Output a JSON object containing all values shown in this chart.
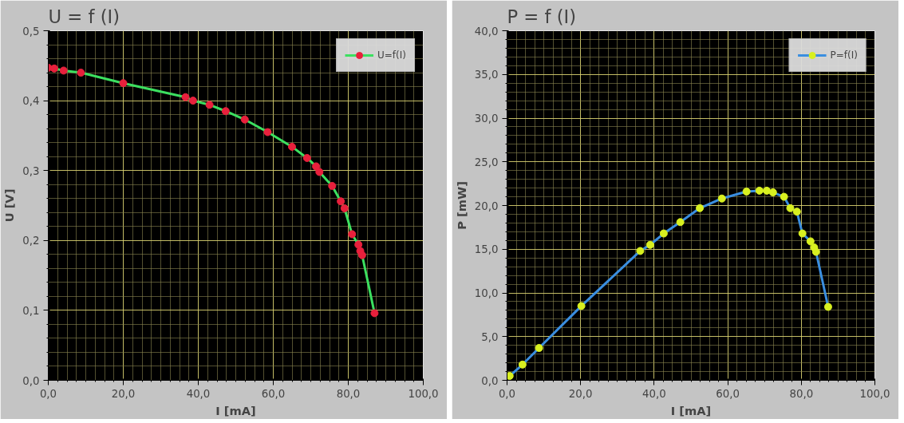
{
  "chart_data": [
    {
      "type": "line",
      "title": "U = f (I)",
      "xlabel": "I [mA]",
      "ylabel": "U [V]",
      "series": [
        {
          "name": "U=f(I)",
          "color": "#3ce060",
          "colors": [
            "#e8203c",
            "#e8203c",
            "#e8203c",
            "#e8203c",
            "#e8203c",
            "#e8203c",
            "#e8203c",
            "#e8203c",
            "#e8203c",
            "#e8203c",
            "#e8203c",
            "#e8203c",
            "#e8203c",
            "#e8203c",
            "#e8203c",
            "#e8203c",
            "#e8203c",
            "#e8203c",
            "#e8203c",
            "#e8203c",
            "#e8203c",
            "#e8203c",
            "#e8203c"
          ],
          "x": [
            0,
            1.6,
            4.1,
            8.7,
            20,
            36.6,
            38.6,
            43,
            47.3,
            52.4,
            58.5,
            65,
            69,
            71.4,
            72.3,
            75.7,
            78,
            79,
            81,
            82.7,
            83.2,
            83.7,
            87
          ],
          "values": [
            0.447,
            0.446,
            0.443,
            0.44,
            0.425,
            0.405,
            0.4,
            0.394,
            0.385,
            0.373,
            0.355,
            0.334,
            0.318,
            0.306,
            0.298,
            0.278,
            0.256,
            0.246,
            0.209,
            0.194,
            0.185,
            0.179,
            0.096
          ]
        }
      ],
      "xlim": [
        0,
        100
      ],
      "ylim": [
        0,
        0.5
      ],
      "xticks": [
        {
          "value": 0,
          "label": "0,0"
        },
        {
          "value": 2.5,
          "label": null
        },
        {
          "value": 5,
          "label": null
        },
        {
          "value": 7.5,
          "label": null
        },
        {
          "value": 10,
          "label": null
        },
        {
          "value": 12.5,
          "label": null
        },
        {
          "value": 15,
          "label": null
        },
        {
          "value": 17.5,
          "label": null
        },
        {
          "value": 20,
          "label": "20,0"
        },
        {
          "value": 22.5,
          "label": null
        },
        {
          "value": 25,
          "label": null
        },
        {
          "value": 27.5,
          "label": null
        },
        {
          "value": 30,
          "label": null
        },
        {
          "value": 32.5,
          "label": null
        },
        {
          "value": 35,
          "label": null
        },
        {
          "value": 37.5,
          "label": null
        },
        {
          "value": 40,
          "label": "40,0"
        },
        {
          "value": 42.5,
          "label": null
        },
        {
          "value": 45,
          "label": null
        },
        {
          "value": 47.5,
          "label": null
        },
        {
          "value": 50,
          "label": null
        },
        {
          "value": 52.5,
          "label": null
        },
        {
          "value": 55,
          "label": null
        },
        {
          "value": 57.5,
          "label": null
        },
        {
          "value": 60,
          "label": "60,0"
        },
        {
          "value": 62.5,
          "label": null
        },
        {
          "value": 65,
          "label": null
        },
        {
          "value": 67.5,
          "label": null
        },
        {
          "value": 70,
          "label": null
        },
        {
          "value": 72.5,
          "label": null
        },
        {
          "value": 75,
          "label": null
        },
        {
          "value": 77.5,
          "label": null
        },
        {
          "value": 80,
          "label": "80,0"
        },
        {
          "value": 82.5,
          "label": null
        },
        {
          "value": 85,
          "label": null
        },
        {
          "value": 87.5,
          "label": null
        },
        {
          "value": 90,
          "label": null
        },
        {
          "value": 92.5,
          "label": null
        },
        {
          "value": 95,
          "label": null
        },
        {
          "value": 97.5,
          "label": null
        },
        {
          "value": 100,
          "label": "100,0"
        }
      ],
      "yticks": [
        {
          "value": 0,
          "label": "0,0"
        },
        {
          "value": 0.02,
          "label": null
        },
        {
          "value": 0.04,
          "label": null
        },
        {
          "value": 0.06,
          "label": null
        },
        {
          "value": 0.08,
          "label": null
        },
        {
          "value": 0.1,
          "label": "0,1"
        },
        {
          "value": 0.12,
          "label": null
        },
        {
          "value": 0.14,
          "label": null
        },
        {
          "value": 0.16,
          "label": null
        },
        {
          "value": 0.18,
          "label": null
        },
        {
          "value": 0.2,
          "label": "0,2"
        },
        {
          "value": 0.22,
          "label": null
        },
        {
          "value": 0.24,
          "label": null
        },
        {
          "value": 0.26,
          "label": null
        },
        {
          "value": 0.28,
          "label": null
        },
        {
          "value": 0.3,
          "label": "0,3"
        },
        {
          "value": 0.32,
          "label": null
        },
        {
          "value": 0.34,
          "label": null
        },
        {
          "value": 0.36,
          "label": null
        },
        {
          "value": 0.38,
          "label": null
        },
        {
          "value": 0.4,
          "label": "0,4"
        },
        {
          "value": 0.42,
          "label": null
        },
        {
          "value": 0.44,
          "label": null
        },
        {
          "value": 0.46,
          "label": null
        },
        {
          "value": 0.48,
          "label": null
        },
        {
          "value": 0.5,
          "label": "0,5"
        }
      ],
      "grid": true,
      "legend": "top right",
      "marker": "circle",
      "line_style": "solid"
    },
    {
      "type": "line",
      "title": "P = f (I)",
      "xlabel": "I [mA]",
      "ylabel": "P [mW]",
      "series": [
        {
          "name": "P=f(I)",
          "color": "#3a8ee0",
          "colors": [
            "#d8f020",
            "#d8f020",
            "#d8f020",
            "#d8f020",
            "#d8f020",
            "#d8f020",
            "#d8f020",
            "#d8f020",
            "#d8f020",
            "#d8f020",
            "#d8f020",
            "#d8f020",
            "#d8f020",
            "#d8f020",
            "#d8f020",
            "#d8f020",
            "#d8f020",
            "#d8f020",
            "#d8f020",
            "#d8f020",
            "#d8f020",
            "#d8f020"
          ],
          "x": [
            0.7,
            4.2,
            8.7,
            20.2,
            36.2,
            38.9,
            42.6,
            47.1,
            52.4,
            58.4,
            65.1,
            68.6,
            70.6,
            72.3,
            75.3,
            77,
            78.8,
            80.3,
            82.5,
            83.5,
            84,
            87.3
          ],
          "values": [
            0.5,
            1.8,
            3.7,
            8.5,
            14.8,
            15.5,
            16.8,
            18.1,
            19.7,
            20.8,
            21.6,
            21.7,
            21.7,
            21.5,
            21.0,
            19.7,
            19.3,
            16.8,
            15.9,
            15.2,
            14.7,
            8.4
          ]
        }
      ],
      "xlim": [
        0,
        100
      ],
      "ylim": [
        0,
        40
      ],
      "xticks": [
        {
          "value": 0,
          "label": "0,0"
        },
        {
          "value": 2.5,
          "label": null
        },
        {
          "value": 5,
          "label": null
        },
        {
          "value": 7.5,
          "label": null
        },
        {
          "value": 10,
          "label": null
        },
        {
          "value": 12.5,
          "label": null
        },
        {
          "value": 15,
          "label": null
        },
        {
          "value": 17.5,
          "label": null
        },
        {
          "value": 20,
          "label": "20,0"
        },
        {
          "value": 22.5,
          "label": null
        },
        {
          "value": 25,
          "label": null
        },
        {
          "value": 27.5,
          "label": null
        },
        {
          "value": 30,
          "label": null
        },
        {
          "value": 32.5,
          "label": null
        },
        {
          "value": 35,
          "label": null
        },
        {
          "value": 37.5,
          "label": null
        },
        {
          "value": 40,
          "label": "40,0"
        },
        {
          "value": 42.5,
          "label": null
        },
        {
          "value": 45,
          "label": null
        },
        {
          "value": 47.5,
          "label": null
        },
        {
          "value": 50,
          "label": null
        },
        {
          "value": 52.5,
          "label": null
        },
        {
          "value": 55,
          "label": null
        },
        {
          "value": 57.5,
          "label": null
        },
        {
          "value": 60,
          "label": "60,0"
        },
        {
          "value": 62.5,
          "label": null
        },
        {
          "value": 65,
          "label": null
        },
        {
          "value": 67.5,
          "label": null
        },
        {
          "value": 70,
          "label": null
        },
        {
          "value": 72.5,
          "label": null
        },
        {
          "value": 75,
          "label": null
        },
        {
          "value": 77.5,
          "label": null
        },
        {
          "value": 80,
          "label": "80,0"
        },
        {
          "value": 82.5,
          "label": null
        },
        {
          "value": 85,
          "label": null
        },
        {
          "value": 87.5,
          "label": null
        },
        {
          "value": 90,
          "label": null
        },
        {
          "value": 92.5,
          "label": null
        },
        {
          "value": 95,
          "label": null
        },
        {
          "value": 97.5,
          "label": null
        },
        {
          "value": 100,
          "label": "100,0"
        }
      ],
      "yticks": [
        {
          "value": 0,
          "label": "0,0"
        },
        {
          "value": 1,
          "label": null
        },
        {
          "value": 2,
          "label": null
        },
        {
          "value": 3,
          "label": null
        },
        {
          "value": 4,
          "label": null
        },
        {
          "value": 5,
          "label": "5,0"
        },
        {
          "value": 6,
          "label": null
        },
        {
          "value": 7,
          "label": null
        },
        {
          "value": 8,
          "label": null
        },
        {
          "value": 9,
          "label": null
        },
        {
          "value": 10,
          "label": "10,0"
        },
        {
          "value": 11,
          "label": null
        },
        {
          "value": 12,
          "label": null
        },
        {
          "value": 13,
          "label": null
        },
        {
          "value": 14,
          "label": null
        },
        {
          "value": 15,
          "label": "15,0"
        },
        {
          "value": 16,
          "label": null
        },
        {
          "value": 17,
          "label": null
        },
        {
          "value": 18,
          "label": null
        },
        {
          "value": 19,
          "label": null
        },
        {
          "value": 20,
          "label": "20,0"
        },
        {
          "value": 21,
          "label": null
        },
        {
          "value": 22,
          "label": null
        },
        {
          "value": 23,
          "label": null
        },
        {
          "value": 24,
          "label": null
        },
        {
          "value": 25,
          "label": "25,0"
        },
        {
          "value": 26,
          "label": null
        },
        {
          "value": 27,
          "label": null
        },
        {
          "value": 28,
          "label": null
        },
        {
          "value": 29,
          "label": null
        },
        {
          "value": 30,
          "label": "30,0"
        },
        {
          "value": 31,
          "label": null
        },
        {
          "value": 32,
          "label": null
        },
        {
          "value": 33,
          "label": null
        },
        {
          "value": 34,
          "label": null
        },
        {
          "value": 35,
          "label": "35,0"
        },
        {
          "value": 36,
          "label": null
        },
        {
          "value": 37,
          "label": null
        },
        {
          "value": 38,
          "label": null
        },
        {
          "value": 39,
          "label": null
        },
        {
          "value": 40,
          "label": "40,0"
        }
      ],
      "grid": true,
      "legend": "top right",
      "marker": "circle",
      "line_style": "solid"
    }
  ]
}
